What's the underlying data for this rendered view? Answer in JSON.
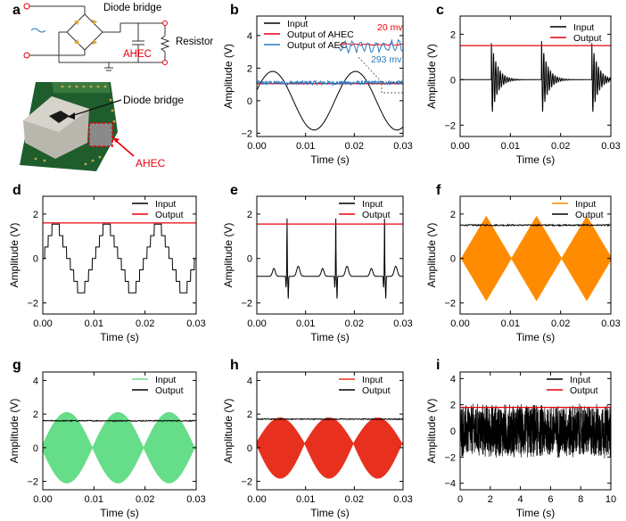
{
  "figure": {
    "panel_labels": [
      "a",
      "b",
      "c",
      "d",
      "e",
      "f",
      "g",
      "h",
      "i"
    ]
  },
  "panel_a": {
    "schematic": {
      "diode_bridge_label": "Diode bridge",
      "resistor_label": "Resistor",
      "ahec_label": "AHEC",
      "ac_symbol": "~"
    },
    "photo": {
      "diode_bridge_label": "Diode bridge",
      "ahec_label": "AHEC"
    },
    "colors": {
      "ahec": "#e8000b",
      "wire": "#333333",
      "diode": "#e0a030"
    }
  },
  "chart_data": [
    {
      "panel": "b",
      "type": "line",
      "xlabel": "Time (s)",
      "ylabel": "Amplitude (V)",
      "xlim": [
        0,
        0.03
      ],
      "ylim": [
        -2.2,
        5.2
      ],
      "xticks": [
        "0.00",
        "0.01",
        "0.02",
        "0.03"
      ],
      "yticks": [
        "-2",
        "0",
        "2",
        "4"
      ],
      "legend_position": "top-left",
      "series": [
        {
          "name": "Input",
          "color": "#000000",
          "shape": "sine",
          "amplitude": 1.8,
          "period": 0.017,
          "phase": -0.001
        },
        {
          "name": "Output of AHEC",
          "color": "#e8000b",
          "shape": "flat",
          "level": 1.05
        },
        {
          "name": "Output of AEC",
          "color": "#2b7bbf",
          "shape": "flat_noisy",
          "level": 1.1,
          "noise": 0.12
        }
      ],
      "annotations": [
        "20 mv",
        "293 mv"
      ],
      "inset_colors": {
        "ahec": "#e8000b",
        "aec": "#2b7bbf"
      }
    },
    {
      "panel": "c",
      "type": "line",
      "xlabel": "Time (s)",
      "ylabel": "Amplitude (V)",
      "xlim": [
        0,
        0.03
      ],
      "ylim": [
        -2.5,
        2.8
      ],
      "xticks": [
        "0.00",
        "0.01",
        "0.02",
        "0.03"
      ],
      "yticks": [
        "-2",
        "0",
        "2"
      ],
      "legend_position": "top-right",
      "series": [
        {
          "name": "Input",
          "color": "#000000",
          "shape": "damped_ring",
          "spikes": [
            0.0062,
            0.0162,
            0.0262
          ],
          "amplitude": 1.7
        },
        {
          "name": "Output",
          "color": "#e8000b",
          "shape": "flat",
          "level": 1.5
        }
      ]
    },
    {
      "panel": "d",
      "type": "line",
      "xlabel": "Time (s)",
      "ylabel": "Amplitude (V)",
      "xlim": [
        0,
        0.03
      ],
      "ylim": [
        -2.5,
        2.8
      ],
      "xticks": [
        "0.00",
        "0.01",
        "0.02",
        "0.03"
      ],
      "yticks": [
        "-2",
        "0",
        "2"
      ],
      "legend_position": "top-right",
      "series": [
        {
          "name": "Input",
          "color": "#000000",
          "shape": "staircase_triangle",
          "amplitude": 1.8,
          "period": 0.01,
          "steps": 7
        },
        {
          "name": "Output",
          "color": "#e8000b",
          "shape": "flat",
          "level": 1.6
        }
      ]
    },
    {
      "panel": "e",
      "type": "line",
      "xlabel": "Time (s)",
      "ylabel": "Amplitude (V)",
      "xlim": [
        0,
        0.03
      ],
      "ylim": [
        -2.5,
        2.8
      ],
      "xticks": [
        "0.00",
        "0.01",
        "0.02",
        "0.03"
      ],
      "yticks": [
        "-2",
        "0",
        "2"
      ],
      "legend_position": "top-right",
      "series": [
        {
          "name": "Input",
          "color": "#000000",
          "shape": "ecg",
          "peaks": [
            0.0062,
            0.0162,
            0.0262
          ],
          "baseline": -0.8
        },
        {
          "name": "Output",
          "color": "#e8000b",
          "shape": "flat",
          "level": 1.55
        }
      ]
    },
    {
      "panel": "f",
      "type": "area",
      "xlabel": "Time (s)",
      "ylabel": "Amplitude (V)",
      "xlim": [
        0,
        0.03
      ],
      "ylim": [
        -2.5,
        2.8
      ],
      "xticks": [
        "0.00",
        "0.01",
        "0.02",
        "0.03"
      ],
      "yticks": [
        "-2",
        "0",
        "2"
      ],
      "legend_position": "top-right",
      "series": [
        {
          "name": "Input",
          "color": "#ff8c00",
          "shape": "diamond_envelope",
          "amplitude": 1.9,
          "period": 0.01
        },
        {
          "name": "Output",
          "color": "#000000",
          "shape": "flat_noisy",
          "level": 1.5,
          "noise": 0.03
        }
      ]
    },
    {
      "panel": "g",
      "type": "area",
      "xlabel": "Time (s)",
      "ylabel": "Amplitude (V)",
      "xlim": [
        0,
        0.03
      ],
      "ylim": [
        -2.5,
        4.5
      ],
      "xticks": [
        "0.00",
        "0.01",
        "0.02",
        "0.03"
      ],
      "yticks": [
        "-2",
        "0",
        "2",
        "4"
      ],
      "legend_position": "top-right",
      "series": [
        {
          "name": "Input",
          "color": "#66dd88",
          "shape": "barrel_envelope",
          "amplitude": 2.1,
          "period": 0.01
        },
        {
          "name": "Output",
          "color": "#000000",
          "shape": "flat_noisy",
          "level": 1.6,
          "noise": 0.03
        }
      ]
    },
    {
      "panel": "h",
      "type": "area",
      "xlabel": "Time (s)",
      "ylabel": "Amplitude (V)",
      "xlim": [
        0,
        0.03
      ],
      "ylim": [
        -2.5,
        4.5
      ],
      "xticks": [
        "0.00",
        "0.01",
        "0.02",
        "0.03"
      ],
      "yticks": [
        "-2",
        "0",
        "2",
        "4"
      ],
      "legend_position": "top-right",
      "series": [
        {
          "name": "Input",
          "color": "#e8301e",
          "shape": "heart_envelope",
          "amplitude": 1.8,
          "period": 0.01
        },
        {
          "name": "Output",
          "color": "#000000",
          "shape": "flat_noisy",
          "level": 1.7,
          "noise": 0.03
        }
      ]
    },
    {
      "panel": "i",
      "type": "area",
      "xlabel": "Time (s)",
      "ylabel": "Amplitude (V)",
      "xlim": [
        0,
        10
      ],
      "ylim": [
        -4.5,
        4.5
      ],
      "xticks": [
        "0",
        "2",
        "4",
        "6",
        "8",
        "10"
      ],
      "yticks": [
        "-4",
        "-2",
        "0",
        "2",
        "4"
      ],
      "legend_position": "top-right",
      "series": [
        {
          "name": "Input",
          "color": "#000000",
          "shape": "random_noise",
          "amplitude": 2.2
        },
        {
          "name": "Output",
          "color": "#e8000b",
          "shape": "flat",
          "level": 1.8
        }
      ]
    }
  ]
}
